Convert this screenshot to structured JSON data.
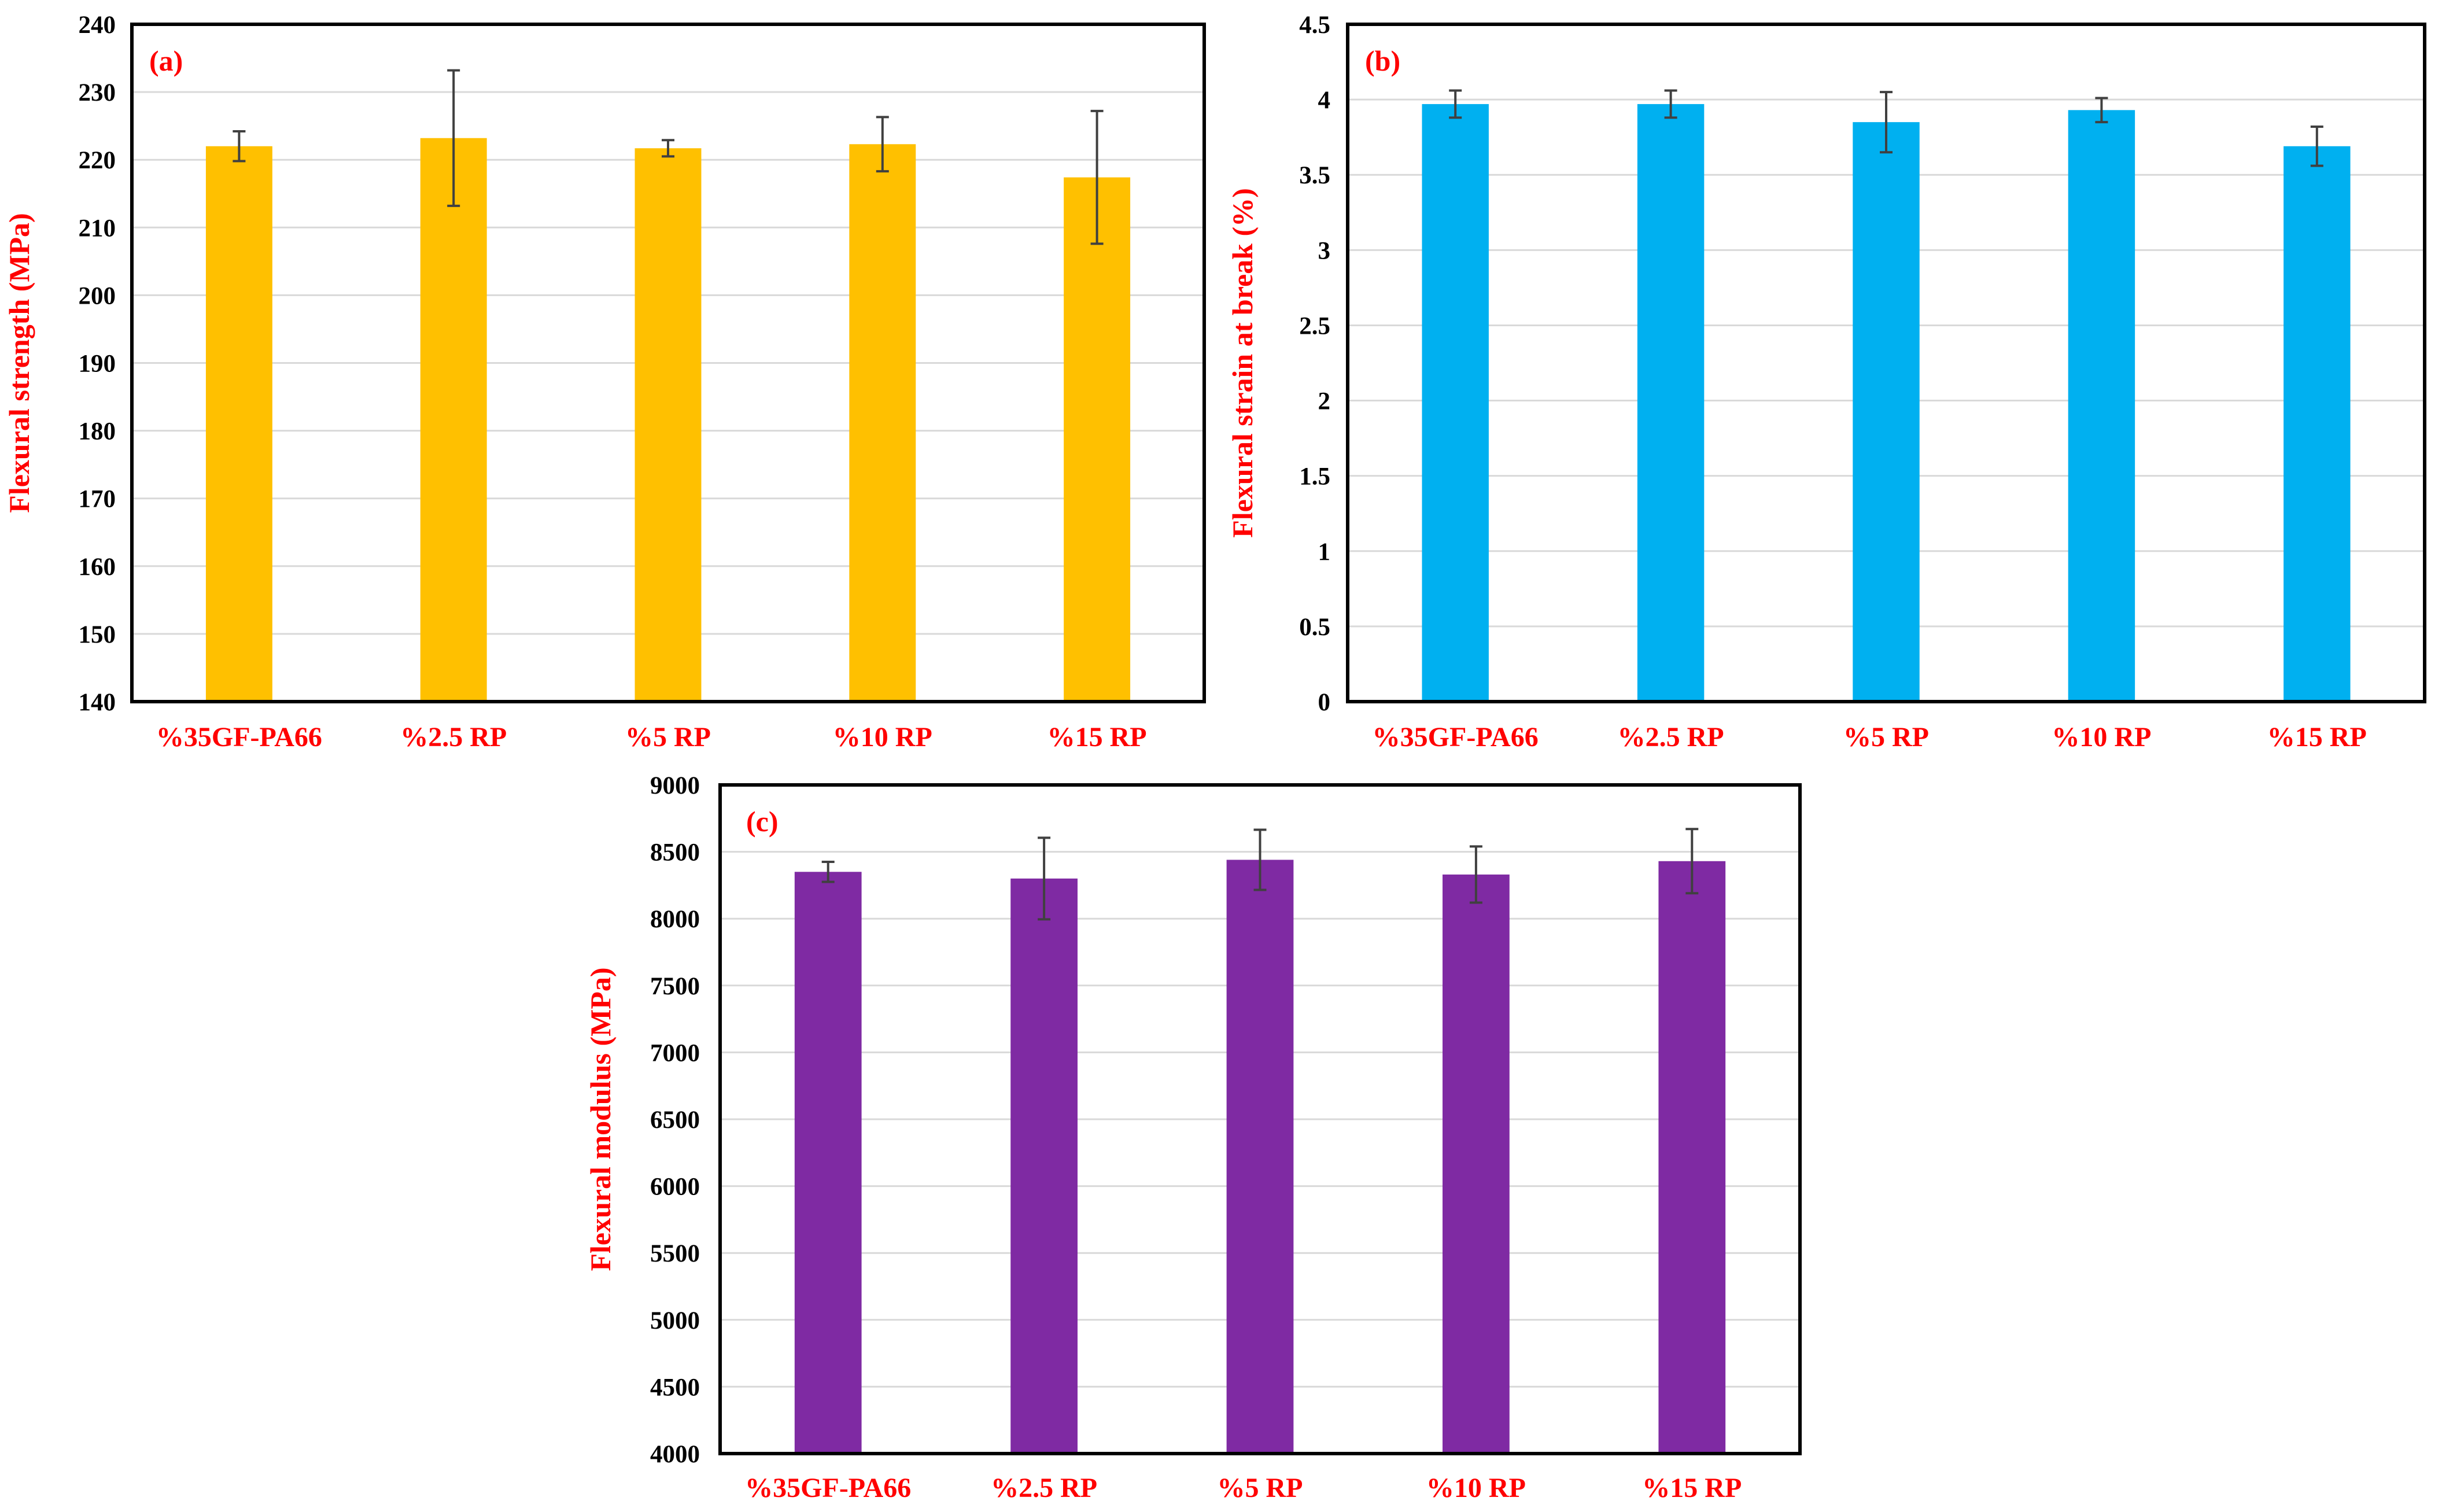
{
  "chart_data": [
    {
      "type": "bar",
      "panel_label": "(a)",
      "categories": [
        "%35GF-PA66",
        "%2.5 RP",
        "%5 RP",
        "%10 RP",
        "%15 RP"
      ],
      "values": [
        222.0,
        223.2,
        221.7,
        222.3,
        217.4
      ],
      "errors": [
        2.2,
        10.0,
        1.2,
        4.0,
        9.8
      ],
      "ylabel": "Flexural strength (MPa)",
      "xlabel": "",
      "ylim": [
        140,
        240
      ],
      "yticks": [
        "140",
        "150",
        "160",
        "170",
        "180",
        "190",
        "200",
        "210",
        "220",
        "230",
        "240"
      ],
      "color": "#ffc000",
      "grid": true
    },
    {
      "type": "bar",
      "panel_label": "(b)",
      "categories": [
        "%35GF-PA66",
        "%2.5 RP",
        "%5 RP",
        "%10 RP",
        "%15 RP"
      ],
      "values": [
        3.97,
        3.97,
        3.85,
        3.93,
        3.69
      ],
      "errors": [
        0.09,
        0.09,
        0.2,
        0.08,
        0.13
      ],
      "ylabel": "Flexural strain at break (%)",
      "xlabel": "",
      "ylim": [
        0,
        4.5
      ],
      "yticks": [
        "0",
        "0.5",
        "1",
        "1.5",
        "2",
        "2.5",
        "3",
        "3.5",
        "4",
        "4.5"
      ],
      "color": "#00b0f0",
      "grid": true
    },
    {
      "type": "bar",
      "panel_label": "(c)",
      "categories": [
        "%35GF-PA66",
        "%2.5 RP",
        "%5 RP",
        "%10 RP",
        "%15 RP"
      ],
      "values": [
        8350,
        8300,
        8440,
        8330,
        8430
      ],
      "errors": [
        75,
        305,
        225,
        210,
        240
      ],
      "ylabel": "Flexural modulus (MPa)",
      "xlabel": "",
      "ylim": [
        4000,
        9000
      ],
      "yticks": [
        "4000",
        "4500",
        "5000",
        "5500",
        "6000",
        "6500",
        "7000",
        "7500",
        "8000",
        "8500",
        "9000"
      ],
      "color": "#7f2aa3",
      "grid": true
    }
  ]
}
